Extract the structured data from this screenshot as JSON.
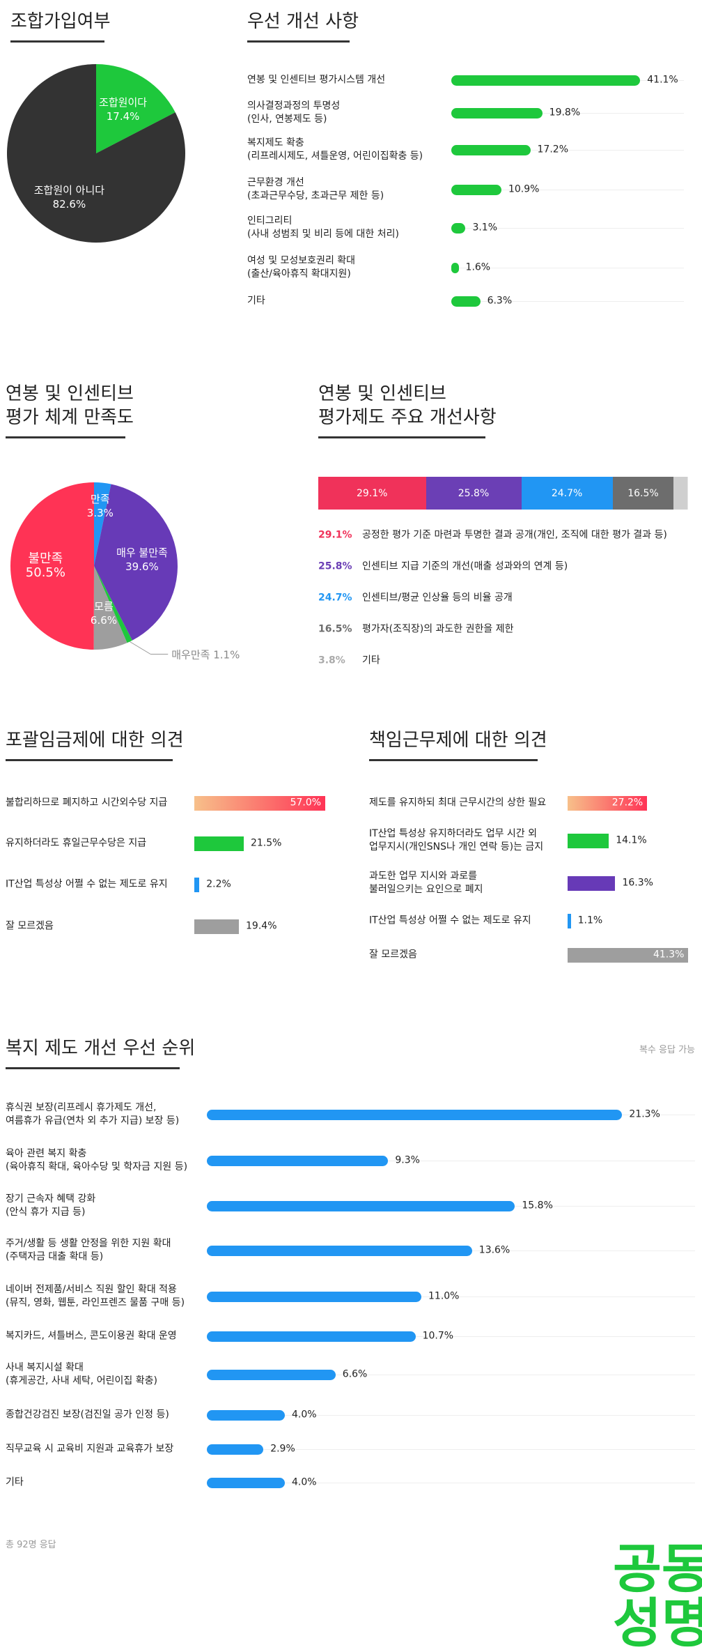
{
  "chart_data": [
    {
      "type": "pie",
      "title": "조합가입여부",
      "categories": [
        "조합원이다",
        "조합원이 아니다"
      ],
      "values": [
        17.4,
        82.6
      ],
      "value_labels": [
        "17.4%",
        "82.6%"
      ],
      "colors": [
        "#1ec83c",
        "#333333"
      ]
    },
    {
      "type": "hbar",
      "title": "우선 개선 사항",
      "categories": [
        "연봉 및 인센티브 평가시스템 개선",
        "의사결정과정의 투명성\n(인사, 연봉제도 등)",
        "복지제도 확충\n(리프레시제도, 셔틀운영, 어린이집확충 등)",
        "근무환경 개선\n(초과근무수당, 초과근무 제한 등)",
        "인티그리티\n(사내 성범죄 및 비리 등에 대한 처리)",
        "여성 및 모성보호권리 확대\n(출산/육아휴직 확대지원)",
        "기타"
      ],
      "values": [
        41.1,
        19.8,
        17.2,
        10.9,
        3.1,
        1.6,
        6.3
      ],
      "value_labels": [
        "41.1%",
        "19.8%",
        "17.2%",
        "10.9%",
        "3.1%",
        "1.6%",
        "6.3%"
      ],
      "color": "#1ec83c"
    },
    {
      "type": "pie",
      "title": "연봉 및 인센티브\n평가 체계 만족도",
      "categories": [
        "만족",
        "매우 불만족",
        "매우만족",
        "모름",
        "불만족"
      ],
      "values": [
        3.3,
        39.6,
        1.1,
        6.6,
        50.5
      ],
      "value_labels": [
        "3.3%",
        "39.6%",
        "1.1%",
        "6.6%",
        "50.5%"
      ],
      "colors": [
        "#2196f3",
        "#673ab7",
        "#1ec83c",
        "#9e9e9e",
        "#ff3355"
      ]
    },
    {
      "type": "stacked_bar",
      "title": "연봉 및 인센티브\n평가제도 주요 개선사항",
      "categories": [
        "공정한 평가 기준 마련과 투명한 결과 공개(개인, 조직에 대한 평가 결과 등)",
        "인센티브 지급 기준의 개선(매출 성과와의 연계 등)",
        "인센티브/평균 인상율 등의 비율 공개",
        "평가자(조직장)의 과도한 권한을 제한",
        "기타"
      ],
      "values": [
        29.1,
        25.8,
        24.7,
        16.5,
        3.8
      ],
      "value_labels": [
        "29.1%",
        "25.8%",
        "24.7%",
        "16.5%",
        "3.8%"
      ],
      "colors": [
        "#f0325a",
        "#6b3fb5",
        "#2196f3",
        "#6d6d6d",
        "#cfcfcf"
      ]
    },
    {
      "type": "hbar",
      "title": "포괄임금제에 대한 의견",
      "categories": [
        "불합리하므로 폐지하고 시간외수당 지급",
        "유지하더라도 휴일근무수당은 지급",
        "IT산업  특성상 어쩔 수 없는 제도로 유지",
        "잘 모르겠음"
      ],
      "values": [
        57.0,
        21.5,
        2.2,
        19.4
      ],
      "value_labels": [
        "57.0%",
        "21.5%",
        "2.2%",
        "19.4%"
      ],
      "colors": [
        [
          "#f7c08a",
          "#ff3355"
        ],
        "#1ec83c",
        "#2196f3",
        "#9e9e9e"
      ]
    },
    {
      "type": "hbar",
      "title": "책임근무제에 대한 의견",
      "categories": [
        "제도를 유지하되 최대 근무시간의 상한 필요",
        "IT산업 특성상 유지하더라도 업무 시간 외\n업무지시(개인SNS나 개인 연락 등)는 금지",
        "과도한 업무 지시와 과로를\n불러일으키는 요인으로 폐지",
        "IT산업  특성상 어쩔 수 없는 제도로 유지",
        "잘 모르겠음"
      ],
      "values": [
        27.2,
        14.1,
        16.3,
        1.1,
        41.3
      ],
      "value_labels": [
        "27.2%",
        "14.1%",
        "16.3%",
        "1.1%",
        "41.3%"
      ],
      "colors": [
        [
          "#f7c08a",
          "#ff3355"
        ],
        "#1ec83c",
        "#673ab7",
        "#2196f3",
        "#9e9e9e"
      ]
    },
    {
      "type": "hbar",
      "title": "복지 제도 개선 우선 순위",
      "annotation": "복수 응답 가능",
      "note": "총 92명 응답",
      "categories": [
        "휴식권 보장(리프레시 휴가제도 개선,\n여름휴가 유급(연차 외 추가 지급) 보장 등)",
        "육아 관련 복지 확충\n(육아휴직 확대, 육아수당 및 학자금 지원 등)",
        "장기 근속자 혜택 강화\n(안식 휴가 지급 등)",
        "주거/생활 등 생활 안정을 위한 지원 확대\n(주택자금 대출 확대 등)",
        "네이버 전제품/서비스 직원 할인 확대 적용\n(뮤직, 영화, 웹툰, 라인프렌즈 물품 구매 등)",
        "복지카드, 셔틀버스, 콘도이용권 확대 운영",
        "사내 복지시설 확대\n(휴게공간, 사내 세탁, 어린이집 확충)",
        "종합건강검진 보장(검진일 공가 인정 등)",
        "직무교육 시 교육비 지원과 교육휴가 보장",
        "기타"
      ],
      "values": [
        21.3,
        9.3,
        15.8,
        13.6,
        11.0,
        10.7,
        6.6,
        4.0,
        2.9,
        4.0
      ],
      "value_labels": [
        "21.3%",
        "9.3%",
        "15.8%",
        "13.6%",
        "11.0%",
        "10.7%",
        "6.6%",
        "4.0%",
        "2.9%",
        "4.0%"
      ],
      "color": "#2196f3"
    }
  ],
  "logo": "공동성명"
}
